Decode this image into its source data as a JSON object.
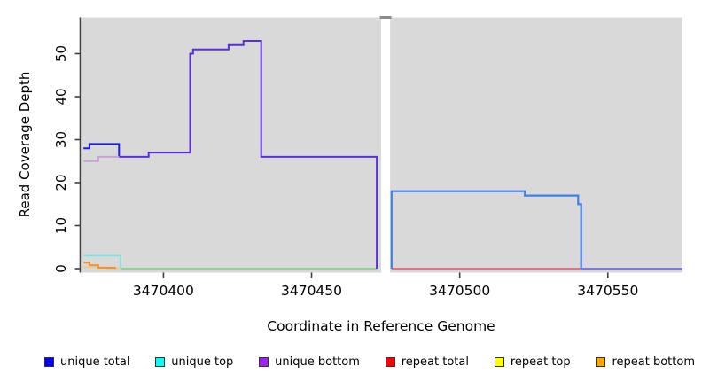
{
  "chart_data": {
    "type": "line",
    "title": "",
    "xlabel": "Coordinate in Reference Genome",
    "ylabel": "Read Coverage Depth",
    "x_ticks": [
      3470400,
      3470450,
      3470500,
      3470550
    ],
    "y_ticks": [
      0,
      10,
      20,
      30,
      40,
      50
    ],
    "xlim": [
      3470372.5,
      3470575.2
    ],
    "ylim": [
      0,
      58.4
    ],
    "panel_background": "#d9d9d9",
    "gap_top_bar_color": "#8c8c8c",
    "axis_color": "#404040",
    "panels": [
      {
        "x0": 3470372.5,
        "x1": 3470473.5
      },
      {
        "x0": 3470476.5,
        "x1": 3470575.2
      }
    ],
    "gap": {
      "x0": 3470473.5,
      "x1": 3470476.5
    },
    "legend": {
      "items": [
        {
          "label": "unique total",
          "color": "#0000ff"
        },
        {
          "label": "unique top",
          "color": "#00ffff"
        },
        {
          "label": "unique bottom",
          "color": "#a020f0"
        },
        {
          "label": "repeat total",
          "color": "#ff0000"
        },
        {
          "label": "repeat top",
          "color": "#ffff00"
        },
        {
          "label": "repeat bottom",
          "color": "#ffa500"
        }
      ]
    },
    "traces": [
      {
        "name": "unique-total-left-solo",
        "series": "unique total",
        "stroke": "#1c1cf0",
        "width": 2,
        "points": [
          [
            3470373,
            28
          ],
          [
            3470375,
            28
          ],
          [
            3470375,
            29
          ],
          [
            3470385,
            29
          ],
          [
            3470385,
            26
          ]
        ]
      },
      {
        "name": "unique-bottom-left-solo",
        "series": "unique bottom",
        "stroke": "#c8a0dc",
        "width": 2,
        "points": [
          [
            3470373,
            25
          ],
          [
            3470378,
            25
          ],
          [
            3470378,
            26
          ],
          [
            3470385,
            26
          ]
        ]
      },
      {
        "name": "unique-top-left",
        "series": "unique top",
        "stroke": "#74e6e6",
        "width": 1.8,
        "points": [
          [
            3470373,
            3
          ],
          [
            3470385.5,
            3
          ],
          [
            3470385.5,
            0
          ]
        ]
      },
      {
        "name": "repeat-top-left",
        "series": "repeat top",
        "stroke": "#e5cc90",
        "width": 1.8,
        "points": [
          [
            3470373,
            0.35
          ],
          [
            3470381,
            0.35
          ],
          [
            3470381,
            0.05
          ],
          [
            3470386,
            0.05
          ]
        ]
      },
      {
        "name": "repeat-bottom-left",
        "series": "repeat bottom",
        "stroke": "#f2932d",
        "width": 2,
        "points": [
          [
            3470373,
            1.4
          ],
          [
            3470375,
            1.4
          ],
          [
            3470375,
            0.8
          ],
          [
            3470378,
            0.8
          ],
          [
            3470378,
            0.2
          ],
          [
            3470384,
            0.2
          ]
        ]
      },
      {
        "name": "zero-line-left",
        "series": "unique top + repeat top overlap at zero",
        "stroke": "#8bcd8f",
        "width": 1.8,
        "points": [
          [
            3470385.5,
            0
          ],
          [
            3470472,
            0
          ]
        ]
      },
      {
        "name": "unique-total-and-bottom-left-merged",
        "series": "unique total + unique bottom overlap",
        "stroke": "#5a2ee0",
        "width": 2,
        "points": [
          [
            3470385,
            26
          ],
          [
            3470395,
            26
          ],
          [
            3470395,
            27
          ],
          [
            3470409,
            27
          ],
          [
            3470409,
            50
          ],
          [
            3470410,
            50
          ],
          [
            3470410,
            51
          ],
          [
            3470422,
            51
          ],
          [
            3470422,
            52
          ],
          [
            3470427,
            52
          ],
          [
            3470427,
            53
          ],
          [
            3470433,
            53
          ],
          [
            3470433,
            26
          ],
          [
            3470472,
            26
          ],
          [
            3470472,
            0
          ]
        ]
      },
      {
        "name": "zero-line-right-repeat",
        "series": "repeat total at zero",
        "stroke": "#e7617a",
        "width": 1.8,
        "points": [
          [
            3470477,
            0
          ],
          [
            3470541,
            0
          ]
        ]
      },
      {
        "name": "unique-total-and-top-right-merged",
        "series": "unique total + unique top overlap",
        "stroke": "#3f7fec",
        "width": 2.2,
        "points": [
          [
            3470477,
            0
          ],
          [
            3470477,
            18
          ],
          [
            3470522,
            18
          ],
          [
            3470522,
            17
          ],
          [
            3470540,
            17
          ],
          [
            3470540,
            15
          ],
          [
            3470541,
            15
          ],
          [
            3470541,
            0
          ]
        ]
      },
      {
        "name": "zero-line-right-unique",
        "series": "unique total at zero",
        "stroke": "#7b78e6",
        "width": 2,
        "points": [
          [
            3470541,
            0
          ],
          [
            3470575.2,
            0
          ]
        ]
      }
    ]
  }
}
